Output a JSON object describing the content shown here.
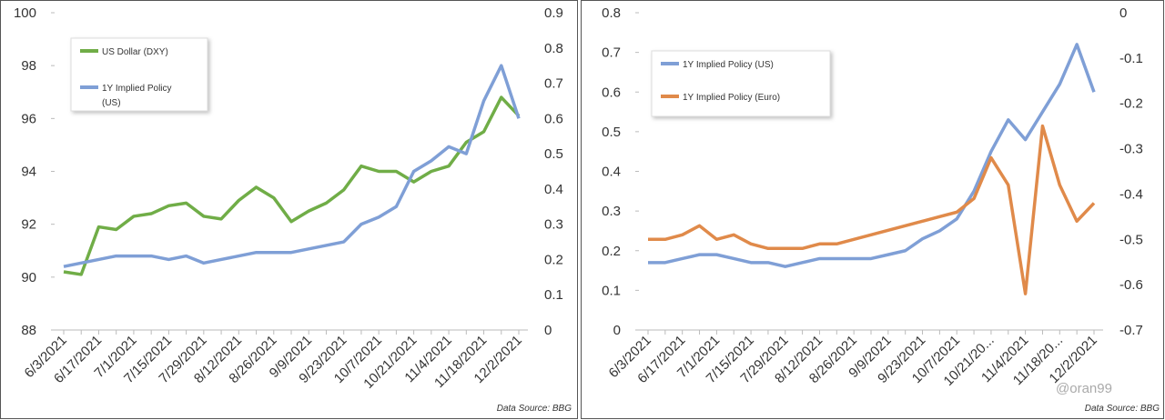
{
  "chart_data": [
    {
      "type": "line",
      "categories": [
        "6/3/2021",
        null,
        "6/17/2021",
        null,
        "7/1/2021",
        null,
        "7/15/2021",
        null,
        "7/29/2021",
        null,
        "8/12/2021",
        null,
        "8/26/2021",
        null,
        "9/9/2021",
        null,
        "9/23/2021",
        null,
        "10/7/2021",
        null,
        "10/21/2021",
        null,
        "11/4/2021",
        null,
        "11/18/2021",
        null,
        "12/2/2021"
      ],
      "series": [
        {
          "name": "US Dollar (DXY)",
          "color": "#70ad47",
          "values": [
            90.2,
            90.1,
            91.9,
            91.8,
            92.3,
            92.4,
            92.7,
            92.8,
            92.3,
            92.2,
            92.9,
            93.4,
            93.0,
            92.1,
            92.5,
            92.8,
            93.3,
            94.2,
            94.0,
            94.0,
            93.6,
            94.0,
            94.2,
            95.1,
            95.5,
            96.8,
            96.1
          ]
        },
        {
          "name": "1Y Implied Policy (US)",
          "color": "#7f9fd6",
          "axis": "y2",
          "values": [
            0.18,
            0.19,
            0.2,
            0.21,
            0.21,
            0.21,
            0.2,
            0.21,
            0.19,
            0.2,
            0.21,
            0.22,
            0.22,
            0.22,
            0.23,
            0.24,
            0.25,
            0.3,
            0.32,
            0.35,
            0.45,
            0.48,
            0.52,
            0.5,
            0.65,
            0.75,
            0.6
          ]
        }
      ],
      "ylim": [
        88,
        100
      ],
      "yticks": [
        88,
        90,
        92,
        94,
        96,
        98,
        100
      ],
      "y2lim": [
        0,
        0.9
      ],
      "y2ticks": [
        0,
        0.1,
        0.2,
        0.3,
        0.4,
        0.5,
        0.6,
        0.7,
        0.8,
        0.9
      ],
      "source": "Data Source: BBG"
    },
    {
      "type": "line",
      "categories": [
        "6/3/2021",
        null,
        "6/17/2021",
        null,
        "7/1/2021",
        null,
        "7/15/2021",
        null,
        "7/29/2021",
        null,
        "8/12/2021",
        null,
        "8/26/2021",
        null,
        "9/9/2021",
        null,
        "9/23/2021",
        null,
        "10/7/2021",
        null,
        "10/21/20...",
        null,
        "11/4/2021",
        null,
        "11/18/20...",
        null,
        "12/2/2021"
      ],
      "series": [
        {
          "name": "1Y Implied Policy (US)",
          "color": "#7f9fd6",
          "values": [
            0.17,
            0.17,
            0.18,
            0.19,
            0.19,
            0.18,
            0.17,
            0.17,
            0.16,
            0.17,
            0.18,
            0.18,
            0.18,
            0.18,
            0.19,
            0.2,
            0.23,
            0.25,
            0.28,
            0.35,
            0.45,
            0.53,
            0.48,
            0.55,
            0.62,
            0.72,
            0.6
          ]
        },
        {
          "name": "1Y Implied Policy (Euro)",
          "color": "#e08a4a",
          "axis": "y2",
          "values": [
            -0.5,
            -0.5,
            -0.49,
            -0.47,
            -0.5,
            -0.49,
            -0.51,
            -0.52,
            -0.52,
            -0.52,
            -0.51,
            -0.51,
            -0.5,
            -0.49,
            -0.48,
            -0.47,
            -0.46,
            -0.45,
            -0.44,
            -0.41,
            -0.32,
            -0.38,
            -0.62,
            -0.25,
            -0.38,
            -0.46,
            -0.42
          ]
        }
      ],
      "ylim": [
        0,
        0.8
      ],
      "yticks": [
        0,
        0.1,
        0.2,
        0.3,
        0.4,
        0.5,
        0.6,
        0.7,
        0.8
      ],
      "y2lim": [
        -0.7,
        0
      ],
      "y2ticks": [
        -0.7,
        -0.6,
        -0.5,
        -0.4,
        -0.3,
        -0.2,
        -0.1,
        0
      ],
      "source": "Data Source: BBG",
      "watermark": "@oran99"
    }
  ]
}
